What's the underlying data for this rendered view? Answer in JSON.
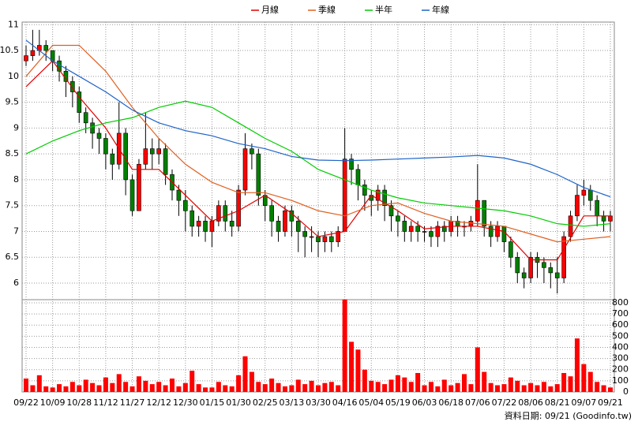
{
  "chart_data": {
    "type": "candlestick",
    "categories": [
      "09/22",
      null,
      null,
      null,
      "10/09",
      null,
      null,
      null,
      "10/28",
      null,
      null,
      null,
      "11/12",
      null,
      null,
      null,
      "11/27",
      null,
      null,
      null,
      "12/12",
      null,
      null,
      null,
      "12/30",
      null,
      null,
      null,
      "01/15",
      null,
      null,
      null,
      "01/30",
      null,
      null,
      null,
      "02/25",
      null,
      null,
      null,
      "03/13",
      null,
      null,
      null,
      "03/30",
      null,
      null,
      null,
      "04/16",
      null,
      null,
      null,
      "05/04",
      null,
      null,
      null,
      "05/19",
      null,
      null,
      null,
      "06/03",
      null,
      null,
      null,
      "06/18",
      null,
      null,
      null,
      "07/06",
      null,
      null,
      null,
      "07/22",
      null,
      null,
      null,
      "08/06",
      null,
      null,
      null,
      "08/21",
      null,
      null,
      null,
      "09/07",
      null,
      null,
      null,
      "09/21"
    ],
    "open": [
      10.3,
      10.4,
      10.5,
      10.6,
      10.5,
      10.3,
      10.1,
      9.9,
      9.7,
      9.3,
      9.1,
      8.9,
      8.8,
      8.5,
      8.3,
      8.9,
      8.0,
      7.4,
      8.3,
      8.6,
      8.5,
      8.6,
      8.1,
      7.8,
      7.6,
      7.4,
      7.1,
      7.2,
      7.0,
      7.2,
      7.5,
      7.2,
      7.1,
      7.8,
      8.6,
      8.5,
      7.7,
      7.5,
      7.2,
      7.0,
      7.4,
      7.2,
      7.0,
      6.9,
      6.9,
      6.8,
      6.9,
      6.8,
      7.0,
      8.4,
      8.2,
      7.9,
      7.7,
      7.6,
      7.8,
      7.5,
      7.3,
      7.2,
      7.0,
      7.1,
      7.0,
      7.0,
      6.9,
      7.1,
      7.0,
      7.2,
      7.1,
      7.1,
      7.2,
      7.6,
      7.1,
      6.9,
      7.1,
      6.8,
      6.5,
      6.2,
      6.1,
      6.5,
      6.4,
      6.3,
      6.2,
      6.1,
      6.9,
      7.3,
      7.7,
      7.8,
      7.6,
      7.3,
      7.2
    ],
    "high": [
      10.6,
      10.9,
      10.9,
      10.7,
      10.5,
      10.4,
      10.2,
      10.0,
      9.8,
      9.4,
      9.2,
      9.0,
      8.9,
      8.6,
      9.5,
      9.0,
      8.1,
      8.4,
      9.3,
      8.8,
      8.8,
      8.7,
      8.2,
      7.9,
      7.8,
      7.5,
      7.3,
      7.3,
      7.3,
      7.6,
      7.6,
      7.4,
      7.9,
      8.9,
      8.7,
      8.6,
      7.8,
      7.6,
      7.3,
      7.5,
      7.5,
      7.3,
      7.1,
      7.1,
      7.0,
      7.0,
      7.0,
      7.1,
      9.0,
      8.5,
      8.3,
      8.0,
      7.8,
      7.9,
      7.9,
      7.6,
      7.4,
      7.3,
      7.2,
      7.2,
      7.1,
      7.1,
      7.2,
      7.2,
      7.3,
      7.3,
      7.2,
      7.3,
      8.3,
      7.6,
      7.2,
      7.2,
      7.1,
      6.9,
      6.6,
      6.3,
      6.6,
      6.6,
      6.5,
      6.4,
      6.5,
      7.0,
      7.4,
      7.9,
      8.0,
      7.9,
      7.7,
      7.4,
      7.4
    ],
    "low": [
      10.2,
      10.3,
      10.4,
      10.3,
      10.1,
      9.9,
      9.6,
      9.4,
      9.1,
      8.9,
      8.6,
      8.5,
      8.2,
      8.0,
      8.2,
      7.7,
      7.3,
      7.4,
      8.2,
      8.2,
      8.3,
      7.9,
      7.6,
      7.3,
      7.0,
      6.9,
      6.9,
      6.8,
      6.7,
      7.1,
      7.0,
      6.9,
      7.0,
      7.7,
      8.2,
      7.5,
      7.2,
      6.9,
      6.8,
      6.9,
      6.9,
      6.6,
      6.5,
      6.6,
      6.5,
      6.6,
      6.6,
      6.7,
      7.0,
      7.9,
      7.6,
      7.4,
      7.3,
      7.4,
      7.2,
      7.0,
      6.9,
      6.8,
      6.8,
      6.8,
      6.8,
      6.7,
      6.7,
      6.8,
      6.9,
      6.9,
      6.9,
      7.0,
      7.1,
      6.9,
      6.7,
      6.8,
      6.6,
      6.3,
      6.0,
      5.9,
      6.0,
      6.1,
      6.0,
      5.9,
      5.8,
      6.0,
      6.8,
      7.2,
      7.5,
      7.4,
      7.1,
      7.0,
      7.0
    ],
    "close": [
      10.4,
      10.5,
      10.6,
      10.5,
      10.3,
      10.1,
      9.9,
      9.7,
      9.3,
      9.1,
      8.9,
      8.8,
      8.5,
      8.3,
      8.9,
      8.0,
      7.4,
      8.3,
      8.6,
      8.5,
      8.6,
      8.1,
      7.8,
      7.6,
      7.4,
      7.1,
      7.2,
      7.0,
      7.2,
      7.5,
      7.2,
      7.1,
      7.8,
      8.6,
      8.5,
      7.7,
      7.5,
      7.2,
      7.0,
      7.4,
      7.2,
      7.0,
      6.9,
      6.9,
      6.8,
      6.9,
      6.8,
      7.0,
      8.4,
      8.2,
      7.9,
      7.7,
      7.6,
      7.8,
      7.5,
      7.3,
      7.2,
      7.0,
      7.1,
      7.0,
      7.0,
      6.9,
      7.1,
      7.0,
      7.2,
      7.1,
      7.1,
      7.2,
      7.6,
      7.1,
      6.9,
      7.1,
      6.8,
      6.5,
      6.2,
      6.1,
      6.5,
      6.4,
      6.3,
      6.2,
      6.1,
      6.9,
      7.3,
      7.7,
      7.8,
      7.6,
      7.3,
      7.2,
      7.3
    ],
    "up_color": "#ff0000",
    "down_color": "#008000",
    "ylim": [
      5.68,
      11.05
    ],
    "yticks": [
      6,
      6.5,
      7,
      7.5,
      8,
      8.5,
      9,
      9.5,
      10,
      10.5,
      11
    ],
    "grid": true,
    "series": [
      {
        "name": "月線",
        "color": "#e00000",
        "x": [
          0,
          4,
          8,
          12,
          16,
          20,
          24,
          28,
          32,
          36,
          40,
          44,
          48,
          52,
          56,
          60,
          64,
          68,
          72,
          76,
          80,
          84,
          88
        ],
        "values": [
          9.8,
          10.3,
          9.6,
          9.0,
          8.2,
          8.2,
          7.7,
          7.2,
          7.4,
          7.7,
          7.35,
          6.9,
          7.0,
          7.7,
          7.4,
          7.05,
          7.1,
          7.1,
          7.0,
          6.45,
          6.45,
          7.3,
          7.3
        ]
      },
      {
        "name": "季線",
        "color": "#e06020",
        "x": [
          0,
          4,
          8,
          12,
          16,
          20,
          24,
          28,
          32,
          36,
          40,
          44,
          48,
          52,
          56,
          60,
          64,
          68,
          72,
          76,
          80,
          84,
          88
        ],
        "values": [
          10.0,
          10.6,
          10.6,
          10.1,
          9.4,
          8.8,
          8.3,
          7.95,
          7.75,
          7.75,
          7.6,
          7.4,
          7.3,
          7.5,
          7.55,
          7.35,
          7.2,
          7.15,
          7.1,
          6.95,
          6.8,
          6.85,
          6.9
        ]
      },
      {
        "name": "半年",
        "color": "#00cc00",
        "x": [
          0,
          4,
          8,
          12,
          16,
          20,
          24,
          28,
          32,
          36,
          40,
          44,
          48,
          52,
          56,
          60,
          64,
          68,
          72,
          76,
          80,
          84,
          88
        ],
        "values": [
          8.5,
          8.75,
          8.95,
          9.1,
          9.2,
          9.4,
          9.52,
          9.4,
          9.1,
          8.8,
          8.55,
          8.2,
          8.0,
          7.8,
          7.65,
          7.55,
          7.5,
          7.45,
          7.4,
          7.3,
          7.15,
          7.1,
          7.15
        ]
      },
      {
        "name": "年線",
        "color": "#1e64c8",
        "x": [
          0,
          4,
          8,
          12,
          16,
          20,
          24,
          28,
          32,
          36,
          40,
          44,
          48,
          52,
          56,
          60,
          64,
          68,
          72,
          76,
          80,
          84,
          88
        ],
        "values": [
          10.7,
          10.3,
          10.0,
          9.7,
          9.35,
          9.1,
          8.95,
          8.85,
          8.7,
          8.6,
          8.45,
          8.38,
          8.37,
          8.38,
          8.4,
          8.42,
          8.44,
          8.47,
          8.42,
          8.3,
          8.1,
          7.85,
          7.67
        ]
      }
    ],
    "volume": {
      "type": "bar",
      "color": "#ff0000",
      "values": [
        120,
        60,
        150,
        50,
        40,
        70,
        50,
        90,
        60,
        110,
        80,
        60,
        130,
        80,
        160,
        90,
        50,
        140,
        100,
        70,
        90,
        60,
        120,
        50,
        80,
        190,
        70,
        40,
        40,
        90,
        60,
        50,
        150,
        320,
        180,
        90,
        70,
        120,
        80,
        50,
        60,
        110,
        70,
        100,
        60,
        80,
        90,
        60,
        830,
        450,
        380,
        200,
        100,
        90,
        70,
        110,
        150,
        130,
        90,
        170,
        60,
        90,
        50,
        110,
        60,
        80,
        160,
        70,
        400,
        180,
        80,
        60,
        70,
        130,
        100,
        60,
        80,
        60,
        90,
        50,
        70,
        170,
        140,
        480,
        250,
        180,
        90,
        60,
        40
      ],
      "ylim": [
        0,
        828
      ],
      "yticks": [
        0,
        100,
        200,
        300,
        400,
        500,
        600,
        700,
        800
      ]
    },
    "footer": "資料日期: 09/21 (Goodinfo.tw)"
  }
}
